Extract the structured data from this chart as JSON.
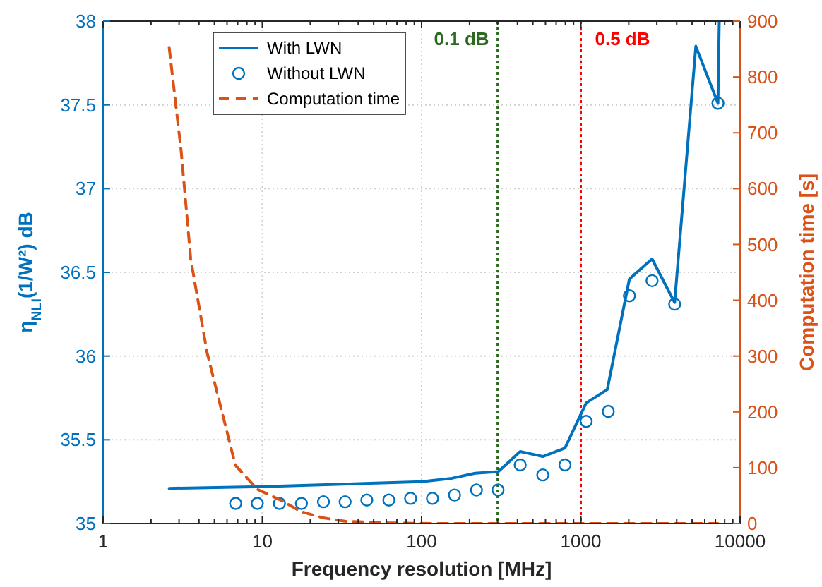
{
  "chart_data": {
    "type": "line",
    "xlabel": "Frequency resolution [MHz]",
    "ylabel": "η$_{NLI}$(1/W²) dB",
    "y2label": "Computation time [s]",
    "log": "x",
    "xlim": [
      1,
      10000
    ],
    "xticks": [
      1,
      {
        "value": 2,
        "label": null
      },
      {
        "value": 3,
        "label": null
      },
      {
        "value": 4,
        "label": null
      },
      {
        "value": 5,
        "label": null
      },
      {
        "value": 6,
        "label": null
      },
      {
        "value": 7,
        "label": null
      },
      {
        "value": 8,
        "label": null
      },
      {
        "value": 9,
        "label": null
      },
      10,
      {
        "value": 20,
        "label": null
      },
      {
        "value": 30,
        "label": null
      },
      {
        "value": 40,
        "label": null
      },
      {
        "value": 50,
        "label": null
      },
      {
        "value": 60,
        "label": null
      },
      {
        "value": 70,
        "label": null
      },
      {
        "value": 80,
        "label": null
      },
      {
        "value": 90,
        "label": null
      },
      100,
      {
        "value": 200,
        "label": null
      },
      {
        "value": 300,
        "label": null
      },
      {
        "value": 400,
        "label": null
      },
      {
        "value": 500,
        "label": null
      },
      {
        "value": 600,
        "label": null
      },
      {
        "value": 700,
        "label": null
      },
      {
        "value": 800,
        "label": null
      },
      {
        "value": 900,
        "label": null
      },
      1000,
      {
        "value": 2000,
        "label": null
      },
      {
        "value": 3000,
        "label": null
      },
      {
        "value": 4000,
        "label": null
      },
      {
        "value": 5000,
        "label": null
      },
      {
        "value": 6000,
        "label": null
      },
      {
        "value": 7000,
        "label": null
      },
      {
        "value": 8000,
        "label": null
      },
      {
        "value": 9000,
        "label": null
      },
      10000
    ],
    "ylim": [
      35,
      38
    ],
    "yticks": [
      35,
      35.5,
      36,
      36.5,
      37,
      37.5,
      38
    ],
    "y2lim": [
      0,
      900
    ],
    "y2ticks": [
      0,
      100,
      200,
      300,
      400,
      500,
      600,
      700,
      800,
      900
    ],
    "grid": true,
    "legend": "top left",
    "ref_lines": [
      {
        "axis": "x",
        "value": 300,
        "label": "0.1 dB",
        "color": "#2b6a1f",
        "line_style": "dotted"
      },
      {
        "axis": "x",
        "value": 1000,
        "label": "0.5 dB",
        "color": "#ff0000",
        "line_style": "dotted"
      }
    ],
    "series": [
      {
        "name": "With LWN",
        "type": "line",
        "color": "#0072bd",
        "marker": "none",
        "line_style": "solid",
        "x": [
          2.6,
          10,
          100,
          155,
          217,
          303,
          416,
          577,
          795,
          1080,
          1466,
          2018,
          2800,
          3882,
          5275,
          7260,
          7400
        ],
        "values": [
          35.21,
          35.22,
          35.25,
          35.27,
          35.3,
          35.31,
          35.43,
          35.4,
          35.45,
          35.72,
          35.8,
          36.46,
          36.58,
          36.32,
          37.85,
          37.51,
          38
        ]
      },
      {
        "name": "Without LWN",
        "type": "scatter",
        "color": "#0072bd",
        "marker": "circle",
        "x": [
          6.8,
          9.3,
          12.8,
          17.6,
          24.2,
          33.1,
          45.3,
          62.3,
          85.3,
          117,
          161,
          221,
          302,
          416,
          577,
          795,
          1080,
          1487,
          2018,
          2800,
          3882,
          7260
        ],
        "values": [
          35.12,
          35.12,
          35.12,
          35.12,
          35.13,
          35.13,
          35.14,
          35.14,
          35.15,
          35.15,
          35.17,
          35.2,
          35.2,
          35.35,
          35.29,
          35.35,
          35.61,
          35.67,
          36.36,
          36.45,
          36.31,
          37.51
        ]
      },
      {
        "name": "Computation time",
        "type": "line",
        "axis": "y2",
        "color": "#d95319",
        "marker": "none",
        "line_style": "dashed",
        "x": [
          2.6,
          3.09,
          3.55,
          4.5,
          5.52,
          6.78,
          9.33,
          12.8,
          17.6,
          24.2,
          33.1,
          62.3,
          117,
          302,
          1080,
          3882,
          7260
        ],
        "values": [
          853,
          668,
          474,
          306,
          205,
          104,
          61,
          43,
          21,
          10,
          4,
          1,
          0,
          0,
          0,
          0,
          0
        ]
      }
    ]
  }
}
